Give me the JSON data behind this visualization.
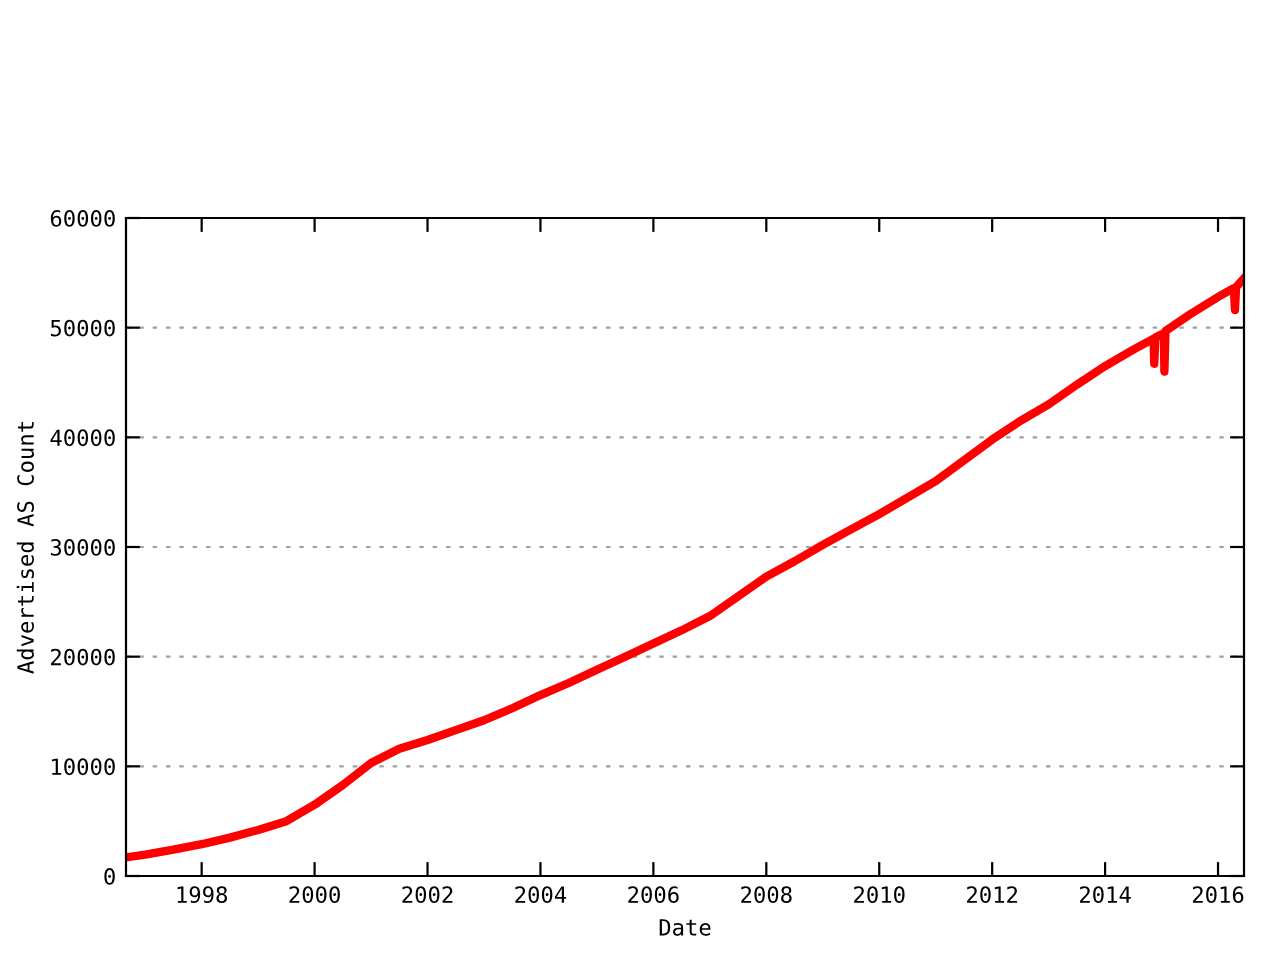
{
  "chart_data": {
    "type": "line",
    "xlabel": "Date",
    "ylabel": "Advertised AS Count",
    "series": [
      {
        "color": "#ff0000",
        "x": [
          1996.66,
          1997,
          1997.5,
          1998,
          1998.5,
          1999,
          1999.5,
          2000,
          2000.5,
          2001,
          2001.5,
          2002,
          2002.5,
          2003,
          2003.5,
          2004,
          2004.5,
          2005,
          2005.5,
          2006,
          2006.5,
          2007,
          2007.5,
          2008,
          2008.5,
          2009,
          2009.5,
          2010,
          2010.5,
          2011,
          2011.5,
          2012,
          2012.5,
          2013,
          2013.5,
          2014,
          2014.5,
          2014.86,
          2014.87,
          2014.89,
          2015.04,
          2015.05,
          2015.07,
          2015.5,
          2016,
          2016.28,
          2016.3,
          2016.32,
          2016.46
        ],
        "values": [
          1700,
          1950,
          2400,
          2900,
          3500,
          4200,
          5000,
          6500,
          8300,
          10300,
          11600,
          12400,
          13300,
          14200,
          15300,
          16500,
          17600,
          18800,
          20000,
          21200,
          22400,
          23700,
          25500,
          27300,
          28700,
          30200,
          31600,
          33000,
          34500,
          36000,
          37900,
          39800,
          41500,
          43000,
          44800,
          46500,
          48000,
          49000,
          46700,
          49100,
          49500,
          46000,
          49700,
          51200,
          52800,
          53600,
          51600,
          53700,
          54500
        ]
      }
    ],
    "xlim": [
      1996.66,
      2016.46
    ],
    "xticks": [
      1998,
      2000,
      2002,
      2004,
      2006,
      2008,
      2010,
      2012,
      2014,
      2016
    ],
    "ylim": [
      0,
      60000
    ],
    "yticks": [
      0,
      10000,
      20000,
      30000,
      40000,
      50000,
      60000
    ],
    "grid": "y",
    "marker": "none",
    "line_style": "solid"
  }
}
